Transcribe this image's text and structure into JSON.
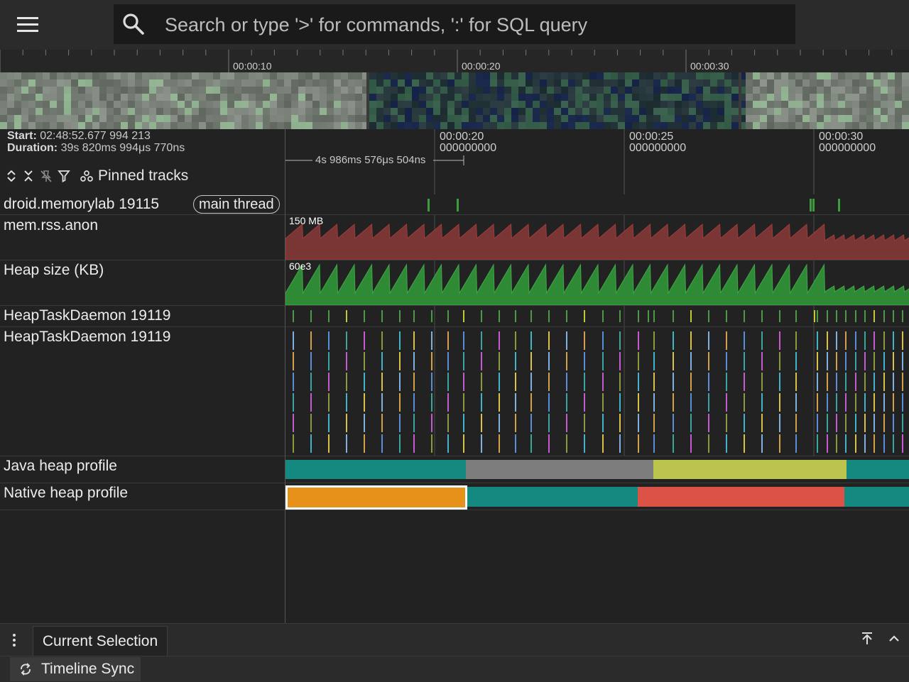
{
  "topbar": {
    "menu_icon": "hamburger-menu-icon",
    "search_icon": "search-icon",
    "search_placeholder": "Search or type '>' for commands, ':' for SQL query"
  },
  "overview": {
    "tick_labels": [
      "00:00:10",
      "00:00:20",
      "00:00:30"
    ]
  },
  "info": {
    "start_label": "Start:",
    "start_value": "02:48:52.677 994 213",
    "duration_label": "Duration:",
    "duration_value": "39s 820ms 994μs 770ns",
    "pinned_tracks_label": "Pinned tracks",
    "toolbar_icons": [
      "expand-all-icon",
      "collapse-all-icon",
      "unpin-all-icon",
      "filter-icon",
      "pinned-tracks-icon"
    ]
  },
  "time_axis": {
    "ticks": [
      {
        "line1": "00:00:20",
        "line2": "000000000"
      },
      {
        "line1": "00:00:25",
        "line2": "000000000"
      },
      {
        "line1": "00:00:30",
        "line2": "000000000"
      }
    ],
    "span_label": "4s 986ms 576μs 504ns"
  },
  "tracks": {
    "process": {
      "title": "droid.memorylab 19115",
      "chip": "main thread"
    },
    "rss": {
      "title": "mem.rss.anon",
      "scale": "150 MB",
      "color": "#7a3535",
      "line_color": "#a03c3c"
    },
    "heap": {
      "title": "Heap size (KB)",
      "scale": "60e3",
      "color": "#2f8a35",
      "line_color": "#40a848"
    },
    "heaptask1": {
      "title": "HeapTaskDaemon 19119"
    },
    "heaptask2": {
      "title": "HeapTaskDaemon 19119"
    },
    "java_heap": {
      "title": "Java heap profile",
      "segment_colors": [
        "#14897f",
        "#7d7d7d",
        "#bcc44d",
        "#14897f"
      ]
    },
    "native_heap": {
      "title": "Native heap profile",
      "segment_colors": [
        "#e6921a",
        "#14897f",
        "#dc5246",
        "#14897f"
      ]
    }
  },
  "bottom": {
    "kebab_icon": "more-options-icon",
    "tab_label": "Current Selection",
    "sync_icon": "sync-icon",
    "sync_label": "Timeline Sync",
    "right_icons": [
      "maximize-panel-icon",
      "collapse-panel-icon"
    ]
  }
}
